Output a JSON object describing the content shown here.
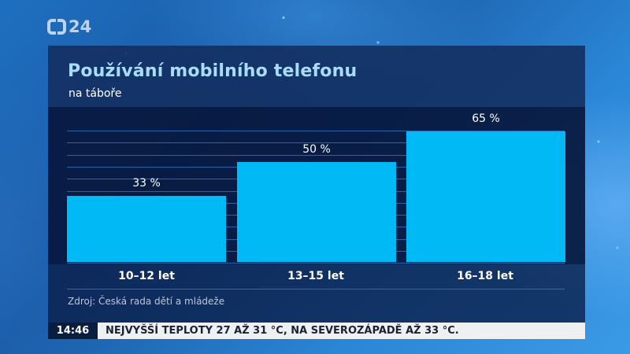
{
  "channel": {
    "logo_text": "24",
    "logo_name": "ČT24"
  },
  "panel": {
    "title": "Používání mobilního telefonu",
    "subtitle": "na táboře",
    "source": "Zdroj: Česká rada dětí a mládeže"
  },
  "bars": [
    {
      "category": "10–12 let",
      "value": 33,
      "label": "33 %"
    },
    {
      "category": "13–15 let",
      "value": 50,
      "label": "50 %"
    },
    {
      "category": "16–18 let",
      "value": 65,
      "label": "65 %"
    }
  ],
  "colors": {
    "bar": "#00b9f5",
    "title": "#a9dcf7",
    "panel": "#0a1c46",
    "ticker_time_bg": "#0b1d3f",
    "ticker_text_bg": "#eef0f2"
  },
  "ticker": {
    "time": "14:46",
    "text": "NEJVYŠŠÍ TEPLOTY 27 AŽ 31 °C, NA SEVEROZÁPADĚ AŽ 33 °C."
  },
  "chart_data": {
    "type": "bar",
    "title": "Používání mobilního telefonu",
    "subtitle": "na táboře",
    "categories": [
      "10–12 let",
      "13–15 let",
      "16–18 let"
    ],
    "values": [
      33,
      50,
      65
    ],
    "data_labels": [
      "33 %",
      "50 %",
      "65 %"
    ],
    "unit": "%",
    "xlabel": "",
    "ylabel": "",
    "ylim": [
      0,
      70
    ],
    "grid": true,
    "legend": null,
    "source": "Zdroj: Česká rada dětí a mládeže"
  }
}
